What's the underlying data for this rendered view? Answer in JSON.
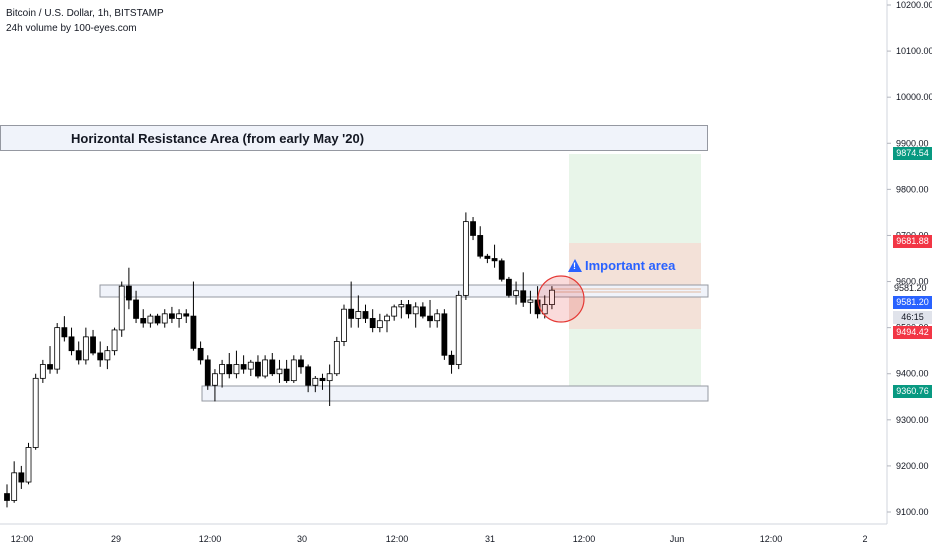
{
  "header": {
    "title": "Bitcoin / U.S. Dollar, 1h, BITSTAMP",
    "subtitle": "24h volume by 100-eyes.com"
  },
  "annotations": {
    "resistance_label": "Horizontal Resistance Area (from early May '20)",
    "important_label": "Important area"
  },
  "price_tags": {
    "target": "9874.54",
    "stop": "9681.88",
    "last": "9581.20",
    "last_plain": "9581.20",
    "countdown": "46:15",
    "entry": "9494.42",
    "bottom": "9360.76"
  },
  "colors": {
    "up_candle": "#ffffff",
    "down_candle": "#000000",
    "profit_zone": "#e8f5e9",
    "loss_zone": "#f3e1d8",
    "target_tag": "#089981",
    "stop_tag": "#f23645",
    "last_tag": "#2962ff",
    "highlight_circle": "#e53935"
  },
  "chart_data": {
    "type": "candlestick",
    "title": "Bitcoin / U.S. Dollar, 1h, BITSTAMP",
    "ylim": [
      9075,
      10225
    ],
    "y_ticks": [
      9100,
      9200,
      9300,
      9400,
      9500,
      9600,
      9700,
      9800,
      9900,
      10000,
      10100,
      10200
    ],
    "y_tick_labels": [
      "9100.00",
      "9200.00",
      "9300.00",
      "9400.00",
      "9500.00",
      "9600.00",
      "9700.00",
      "9800.00",
      "9900.00",
      "10000.00",
      "10100.00",
      "10200.00"
    ],
    "x_ticks": [
      "12:00",
      "29",
      "12:00",
      "30",
      "12:00",
      "31",
      "12:00",
      "Jun",
      "12:00",
      "2"
    ],
    "zones": {
      "resistance_upper": [
        9900,
        9950
      ],
      "resistance_mid": [
        9565,
        9590
      ],
      "support_low": [
        9340,
        9370
      ],
      "position_target": 9874.54,
      "position_stop": 9681.88,
      "position_entry": 9494.42
    },
    "candles": [
      [
        9140,
        9160,
        9110,
        9125
      ],
      [
        9125,
        9210,
        9120,
        9185
      ],
      [
        9185,
        9200,
        9150,
        9165
      ],
      [
        9165,
        9250,
        9160,
        9240
      ],
      [
        9240,
        9400,
        9235,
        9390
      ],
      [
        9390,
        9430,
        9380,
        9420
      ],
      [
        9420,
        9460,
        9400,
        9410
      ],
      [
        9410,
        9510,
        9400,
        9500
      ],
      [
        9500,
        9525,
        9470,
        9480
      ],
      [
        9480,
        9500,
        9440,
        9450
      ],
      [
        9450,
        9470,
        9420,
        9430
      ],
      [
        9430,
        9500,
        9420,
        9480
      ],
      [
        9480,
        9495,
        9440,
        9445
      ],
      [
        9445,
        9470,
        9415,
        9430
      ],
      [
        9430,
        9460,
        9410,
        9450
      ],
      [
        9450,
        9500,
        9440,
        9495
      ],
      [
        9495,
        9600,
        9480,
        9590
      ],
      [
        9590,
        9630,
        9540,
        9560
      ],
      [
        9560,
        9580,
        9510,
        9520
      ],
      [
        9520,
        9540,
        9500,
        9510
      ],
      [
        9510,
        9530,
        9500,
        9525
      ],
      [
        9525,
        9530,
        9505,
        9510
      ],
      [
        9510,
        9540,
        9500,
        9530
      ],
      [
        9530,
        9545,
        9510,
        9520
      ],
      [
        9520,
        9540,
        9500,
        9530
      ],
      [
        9530,
        9540,
        9510,
        9525
      ],
      [
        9525,
        9600,
        9450,
        9455
      ],
      [
        9455,
        9470,
        9420,
        9430
      ],
      [
        9430,
        9440,
        9365,
        9375
      ],
      [
        9375,
        9410,
        9340,
        9400
      ],
      [
        9400,
        9430,
        9370,
        9420
      ],
      [
        9420,
        9445,
        9390,
        9400
      ],
      [
        9400,
        9450,
        9390,
        9420
      ],
      [
        9420,
        9440,
        9400,
        9410
      ],
      [
        9410,
        9430,
        9395,
        9425
      ],
      [
        9425,
        9440,
        9390,
        9395
      ],
      [
        9395,
        9440,
        9390,
        9430
      ],
      [
        9430,
        9445,
        9395,
        9400
      ],
      [
        9400,
        9430,
        9380,
        9410
      ],
      [
        9410,
        9430,
        9380,
        9385
      ],
      [
        9385,
        9440,
        9380,
        9430
      ],
      [
        9430,
        9440,
        9400,
        9415
      ],
      [
        9415,
        9420,
        9360,
        9375
      ],
      [
        9375,
        9395,
        9360,
        9390
      ],
      [
        9390,
        9400,
        9365,
        9385
      ],
      [
        9385,
        9420,
        9330,
        9400
      ],
      [
        9400,
        9480,
        9395,
        9470
      ],
      [
        9470,
        9550,
        9460,
        9540
      ],
      [
        9540,
        9600,
        9500,
        9520
      ],
      [
        9520,
        9570,
        9500,
        9535
      ],
      [
        9535,
        9550,
        9510,
        9520
      ],
      [
        9520,
        9540,
        9490,
        9500
      ],
      [
        9500,
        9530,
        9490,
        9515
      ],
      [
        9515,
        9530,
        9490,
        9525
      ],
      [
        9525,
        9550,
        9515,
        9545
      ],
      [
        9545,
        9560,
        9520,
        9550
      ],
      [
        9550,
        9560,
        9520,
        9530
      ],
      [
        9530,
        9555,
        9500,
        9545
      ],
      [
        9545,
        9555,
        9520,
        9525
      ],
      [
        9525,
        9560,
        9500,
        9515
      ],
      [
        9515,
        9540,
        9500,
        9530
      ],
      [
        9530,
        9540,
        9430,
        9440
      ],
      [
        9440,
        9450,
        9400,
        9420
      ],
      [
        9420,
        9580,
        9410,
        9570
      ],
      [
        9570,
        9750,
        9560,
        9730
      ],
      [
        9730,
        9740,
        9690,
        9700
      ],
      [
        9700,
        9720,
        9650,
        9655
      ],
      [
        9655,
        9660,
        9640,
        9650
      ],
      [
        9650,
        9680,
        9630,
        9645
      ],
      [
        9645,
        9650,
        9600,
        9605
      ],
      [
        9605,
        9610,
        9565,
        9570
      ],
      [
        9570,
        9600,
        9550,
        9580
      ],
      [
        9580,
        9620,
        9545,
        9555
      ],
      [
        9555,
        9580,
        9530,
        9560
      ],
      [
        9560,
        9590,
        9520,
        9530
      ],
      [
        9530,
        9570,
        9520,
        9550
      ],
      [
        9550,
        9590,
        9540,
        9581.2
      ]
    ]
  }
}
